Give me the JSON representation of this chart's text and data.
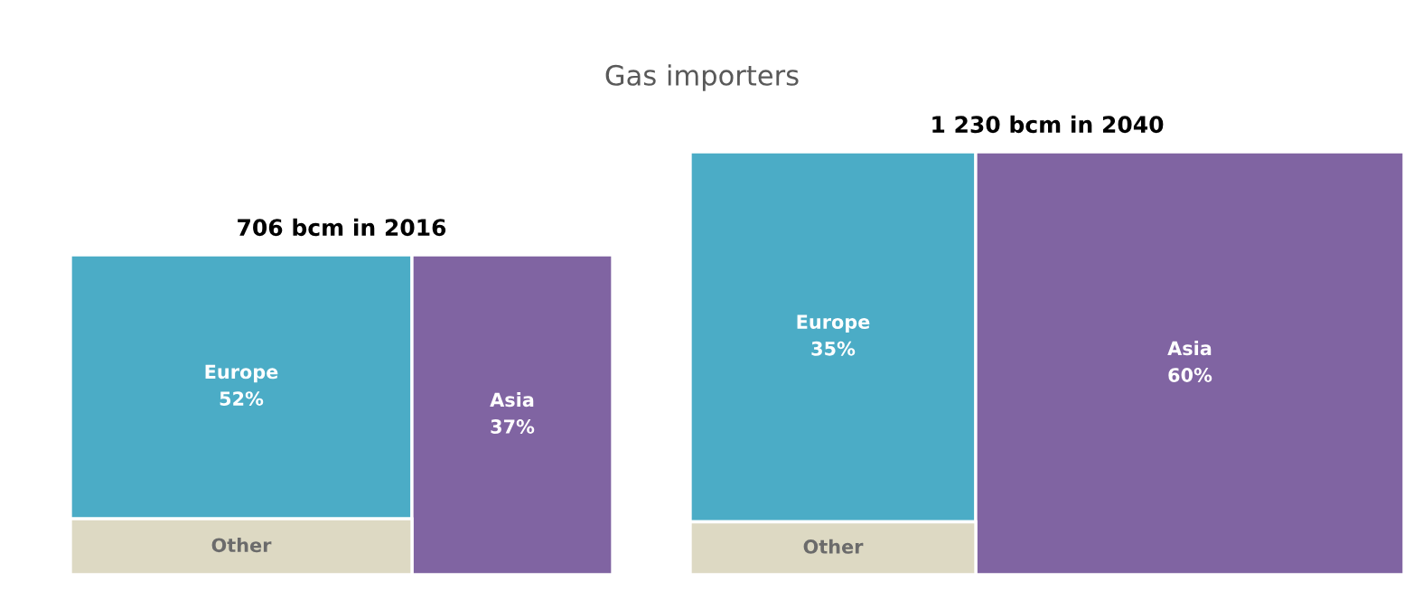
{
  "chart_data": [
    {
      "type": "other",
      "title": "706 bcm in 2016",
      "annotations": [
        "Gas importers"
      ],
      "categories": [
        "Europe",
        "Asia",
        "Other"
      ],
      "values": [
        52,
        37,
        null
      ],
      "value_labels": [
        "52%",
        "37%",
        null
      ],
      "colors": [
        "#4bacc6",
        "#8064a2",
        "#ddd9c3"
      ]
    },
    {
      "type": "other",
      "title": "1 230 bcm in 2040",
      "categories": [
        "Europe",
        "Asia",
        "Other"
      ],
      "values": [
        35,
        60,
        null
      ],
      "value_labels": [
        "35%",
        "60%",
        null
      ],
      "colors": [
        "#4bacc6",
        "#8064a2",
        "#ddd9c3"
      ]
    }
  ]
}
